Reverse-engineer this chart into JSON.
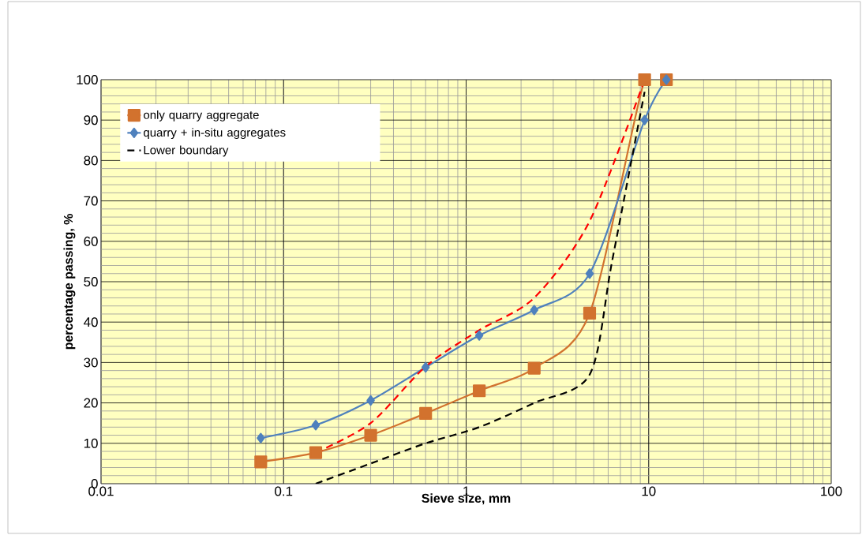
{
  "chart_data": {
    "type": "line",
    "xlabel": "Sieve size, mm",
    "ylabel": "percentage passing, %",
    "log": "x",
    "grid": true,
    "legend": "top left",
    "xlim": [
      0.01,
      100
    ],
    "ylim": [
      0,
      100
    ],
    "xticks": [
      {
        "value": 0.01,
        "label": "0.01"
      },
      {
        "value": 0.1,
        "label": "0.1"
      },
      {
        "value": 1,
        "label": "1"
      },
      {
        "value": 10,
        "label": "10"
      },
      {
        "value": 100,
        "label": "100"
      }
    ],
    "yticks": [
      0,
      10,
      20,
      30,
      40,
      50,
      60,
      70,
      80,
      90,
      100
    ],
    "series": [
      {
        "name": "only quarry aggregate",
        "color": "#d2722e",
        "marker": "square",
        "line_style": "solid",
        "x": [
          0.075,
          0.15,
          0.3,
          0.6,
          1.18,
          2.36,
          4.75,
          9.5,
          12.5
        ],
        "values": [
          5.4,
          7.7,
          12,
          17.4,
          23,
          28.6,
          42.2,
          100,
          100
        ]
      },
      {
        "name": "quarry + in-situ aggregates",
        "color": "#4f81bd",
        "marker": "diamond",
        "line_style": "solid",
        "x": [
          0.075,
          0.15,
          0.3,
          0.6,
          1.18,
          2.36,
          4.75,
          9.5,
          12.5
        ],
        "values": [
          11.3,
          14.5,
          20.6,
          28.8,
          36.7,
          43,
          52,
          90,
          100
        ]
      },
      {
        "name": "Lower boundary",
        "color": "#000000",
        "marker": "none",
        "line_style": "dashed",
        "x": [
          0.15,
          0.3,
          0.6,
          1.18,
          2.36,
          4.75,
          6.3,
          9.5
        ],
        "values": [
          0,
          5,
          10,
          14,
          20,
          27,
          55,
          97
        ]
      },
      {
        "color": "#ff0000",
        "marker": "none",
        "line_style": "dashed",
        "x": [
          0.15,
          0.3,
          0.6,
          1.18,
          2.36,
          4.75,
          9.5
        ],
        "values": [
          7.7,
          15,
          29,
          38,
          46,
          65,
          100
        ]
      }
    ]
  }
}
